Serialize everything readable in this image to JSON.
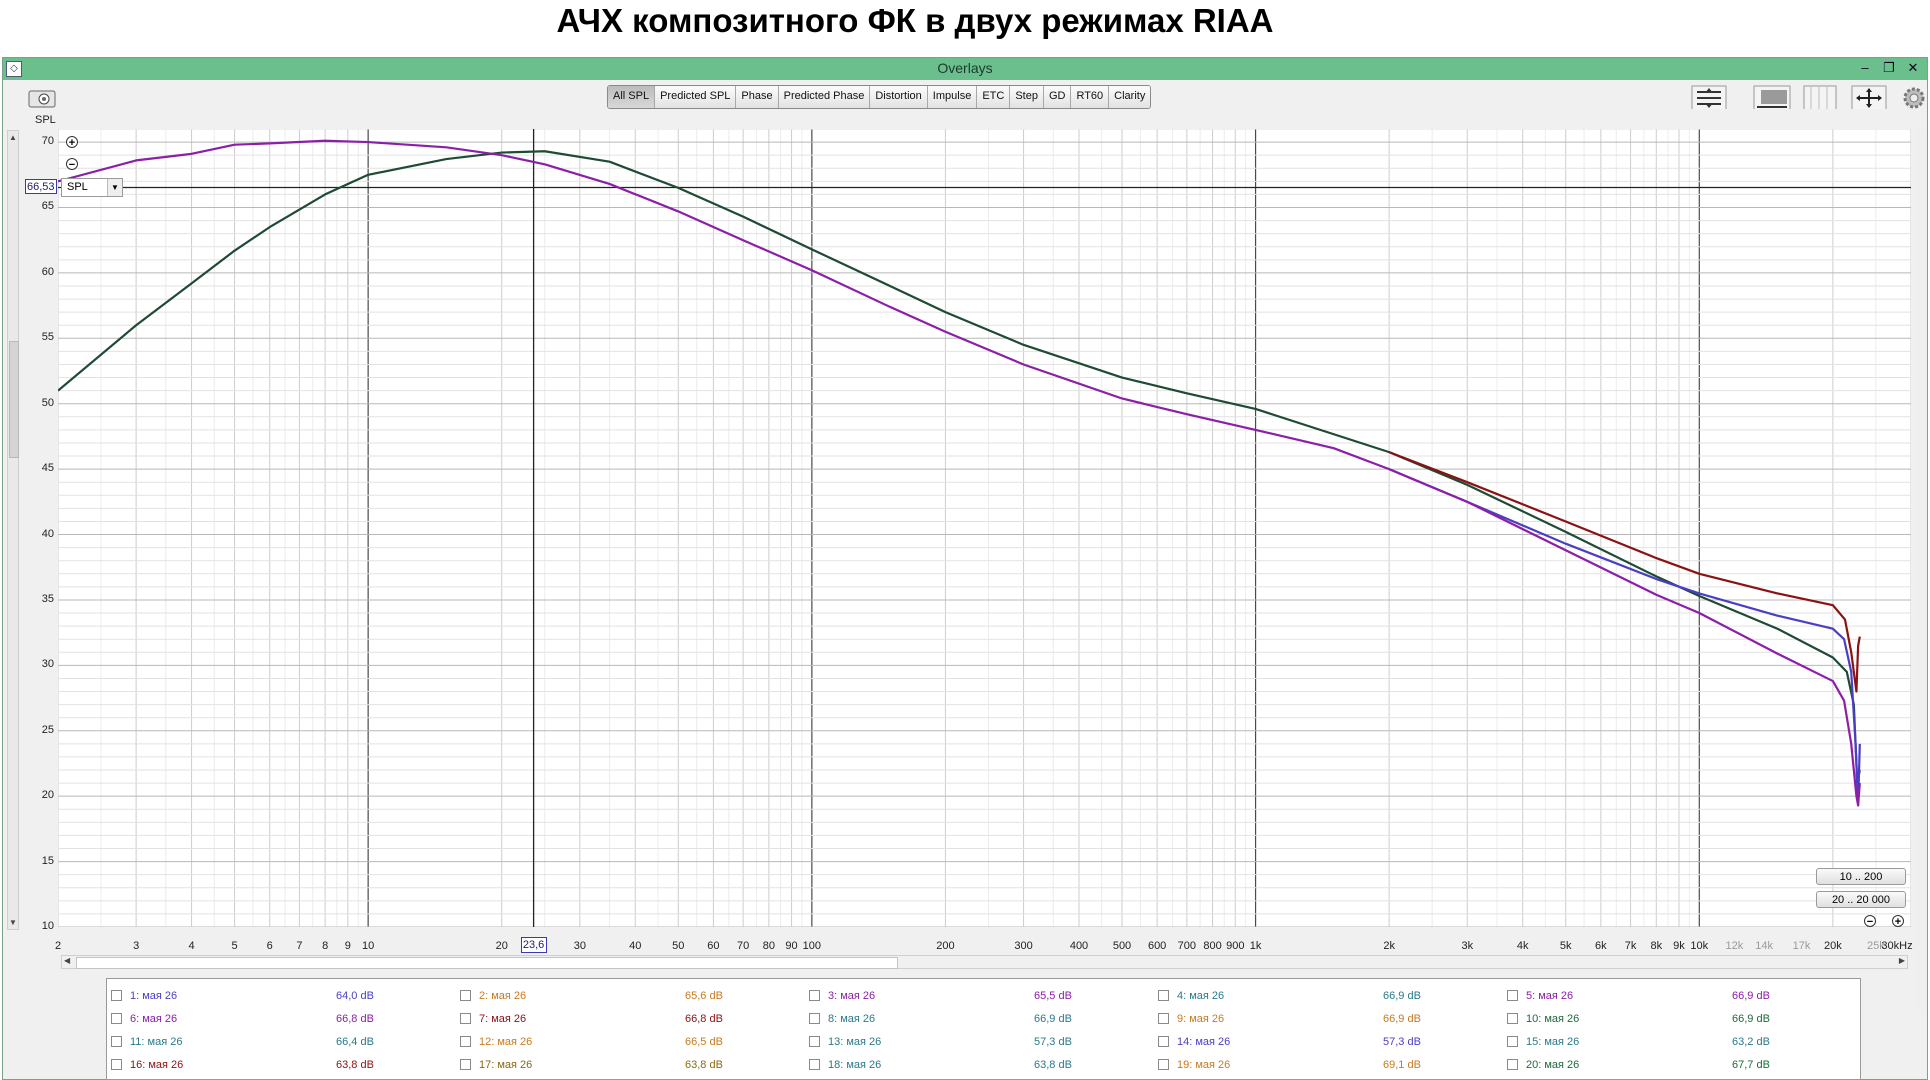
{
  "page_title": "АЧХ композитного ФК в двух режимах RIAA",
  "window": {
    "title": "Overlays",
    "controls": {
      "minimize": "–",
      "restore": "❐",
      "close": "✕"
    }
  },
  "toolbar": {
    "tabs": [
      "All SPL",
      "Predicted SPL",
      "Phase",
      "Predicted Phase",
      "Distortion",
      "Impulse",
      "ETC",
      "Step",
      "GD",
      "RT60",
      "Clarity"
    ],
    "active_tab": "All SPL"
  },
  "left_axis_label": "SPL",
  "cursor": {
    "y_value": "66,53",
    "x_value": "23,6",
    "selector": "SPL"
  },
  "zoom": {
    "in": "+",
    "out": "−"
  },
  "range_buttons": [
    "10 .. 200",
    "20 .. 20 000"
  ],
  "colors": {
    "purple": "#8b1fa8",
    "green": "#1f4a34",
    "red": "#8a1212",
    "blue": "#4a3fc4",
    "grid_major": "#4a4a4a",
    "grid_minor": "#cdcdcd"
  },
  "chart_data": {
    "type": "line",
    "xlabel": "",
    "ylabel": "SPL",
    "x_scale": "log",
    "xlim": [
      2,
      30000
    ],
    "ylim": [
      10,
      71
    ],
    "yticks": [
      10,
      15,
      20,
      25,
      30,
      35,
      40,
      45,
      50,
      55,
      60,
      65,
      70
    ],
    "xtick_labels": [
      {
        "f": 2,
        "label": "2"
      },
      {
        "f": 3,
        "label": "3"
      },
      {
        "f": 4,
        "label": "4"
      },
      {
        "f": 5,
        "label": "5"
      },
      {
        "f": 6,
        "label": "6"
      },
      {
        "f": 7,
        "label": "7"
      },
      {
        "f": 8,
        "label": "8"
      },
      {
        "f": 9,
        "label": "9"
      },
      {
        "f": 10,
        "label": "10"
      },
      {
        "f": 20,
        "label": "20"
      },
      {
        "f": 30,
        "label": "30"
      },
      {
        "f": 40,
        "label": "40"
      },
      {
        "f": 50,
        "label": "50"
      },
      {
        "f": 60,
        "label": "60"
      },
      {
        "f": 70,
        "label": "70"
      },
      {
        "f": 80,
        "label": "80"
      },
      {
        "f": 90,
        "label": "90"
      },
      {
        "f": 100,
        "label": "100"
      },
      {
        "f": 200,
        "label": "200"
      },
      {
        "f": 300,
        "label": "300"
      },
      {
        "f": 400,
        "label": "400"
      },
      {
        "f": 500,
        "label": "500"
      },
      {
        "f": 600,
        "label": "600"
      },
      {
        "f": 700,
        "label": "700"
      },
      {
        "f": 800,
        "label": "800"
      },
      {
        "f": 900,
        "label": "900"
      },
      {
        "f": 1000,
        "label": "1k"
      },
      {
        "f": 2000,
        "label": "2k"
      },
      {
        "f": 3000,
        "label": "3k"
      },
      {
        "f": 4000,
        "label": "4k"
      },
      {
        "f": 5000,
        "label": "5k"
      },
      {
        "f": 6000,
        "label": "6k"
      },
      {
        "f": 7000,
        "label": "7k"
      },
      {
        "f": 8000,
        "label": "8k"
      },
      {
        "f": 9000,
        "label": "9k"
      },
      {
        "f": 10000,
        "label": "10k"
      },
      {
        "f": 12000,
        "label": "12k",
        "minor": true
      },
      {
        "f": 14000,
        "label": "14k",
        "minor": true
      },
      {
        "f": 17000,
        "label": "17k",
        "minor": true
      },
      {
        "f": 20000,
        "label": "20k"
      },
      {
        "f": 25000,
        "label": "25k",
        "minor": true
      },
      {
        "f": 30000,
        "label": "30kHz"
      }
    ],
    "cursor_lines": {
      "x": 23.6,
      "y": 66.53
    },
    "series": [
      {
        "color": "#1f4a34",
        "points": [
          [
            2,
            51
          ],
          [
            3,
            56
          ],
          [
            4,
            59.2
          ],
          [
            5,
            61.7
          ],
          [
            6,
            63.5
          ],
          [
            8,
            66
          ],
          [
            10,
            67.5
          ],
          [
            15,
            68.7
          ],
          [
            20,
            69.2
          ],
          [
            25,
            69.3
          ],
          [
            35,
            68.5
          ],
          [
            50,
            66.5
          ],
          [
            70,
            64.3
          ],
          [
            100,
            61.8
          ],
          [
            150,
            59
          ],
          [
            200,
            57
          ],
          [
            300,
            54.5
          ],
          [
            500,
            52
          ],
          [
            700,
            50.8
          ],
          [
            1000,
            49.6
          ],
          [
            2000,
            46.3
          ],
          [
            3000,
            43.8
          ],
          [
            5000,
            40.2
          ],
          [
            8000,
            36.8
          ],
          [
            10000,
            35.3
          ],
          [
            15000,
            32.8
          ],
          [
            20000,
            30.6
          ],
          [
            21500,
            29.5
          ],
          [
            22300,
            27
          ],
          [
            22700,
            21
          ],
          [
            23000,
            22
          ]
        ]
      },
      {
        "color": "#8a1212",
        "points": [
          [
            2000,
            46.3
          ],
          [
            3000,
            44
          ],
          [
            5000,
            41
          ],
          [
            8000,
            38.2
          ],
          [
            10000,
            37
          ],
          [
            15000,
            35.5
          ],
          [
            20000,
            34.6
          ],
          [
            21300,
            33.5
          ],
          [
            22000,
            31
          ],
          [
            22600,
            28
          ],
          [
            22800,
            31.5
          ],
          [
            23000,
            32.2
          ]
        ]
      },
      {
        "color": "#4a3fc4",
        "points": [
          [
            2000,
            45
          ],
          [
            3000,
            42.5
          ],
          [
            5000,
            39.3
          ],
          [
            8000,
            36.6
          ],
          [
            10000,
            35.5
          ],
          [
            15000,
            33.8
          ],
          [
            20000,
            32.8
          ],
          [
            21200,
            32
          ],
          [
            22000,
            29.5
          ],
          [
            22500,
            24
          ],
          [
            22800,
            19.3
          ],
          [
            23000,
            24
          ]
        ]
      },
      {
        "color": "#8b1fa8",
        "points": [
          [
            2,
            67
          ],
          [
            3,
            68.6
          ],
          [
            4,
            69.1
          ],
          [
            5,
            69.8
          ],
          [
            6,
            69.9
          ],
          [
            8,
            70.1
          ],
          [
            10,
            70
          ],
          [
            15,
            69.6
          ],
          [
            20,
            69
          ],
          [
            25,
            68.3
          ],
          [
            35,
            66.8
          ],
          [
            50,
            64.7
          ],
          [
            70,
            62.5
          ],
          [
            100,
            60.2
          ],
          [
            150,
            57.4
          ],
          [
            200,
            55.5
          ],
          [
            300,
            53
          ],
          [
            500,
            50.4
          ],
          [
            700,
            49.2
          ],
          [
            1000,
            48
          ],
          [
            1500,
            46.6
          ],
          [
            2000,
            45
          ],
          [
            3000,
            42.5
          ],
          [
            5000,
            38.8
          ],
          [
            8000,
            35.4
          ],
          [
            10000,
            34
          ],
          [
            15000,
            30.9
          ],
          [
            20000,
            28.8
          ],
          [
            21200,
            27.3
          ],
          [
            22000,
            24
          ],
          [
            22600,
            20
          ],
          [
            22800,
            19.3
          ],
          [
            23000,
            21
          ]
        ]
      }
    ]
  },
  "legend": {
    "items": [
      {
        "name": "1: мая 26",
        "value": "64,0 dB",
        "color": "#4a3fc4",
        "checked": false
      },
      {
        "name": "2: мая 26",
        "value": "65,6 dB",
        "color": "#c87a20",
        "checked": false
      },
      {
        "name": "3: мая 26",
        "value": "65,5 dB",
        "color": "#8b1fa8",
        "checked": false
      },
      {
        "name": "4: мая 26",
        "value": "66,9 dB",
        "color": "#2a7a8a",
        "checked": false
      },
      {
        "name": "5: мая 26",
        "value": "66,9 dB",
        "color": "#8b1fa8",
        "checked": false
      },
      {
        "name": "6: мая 26",
        "value": "66,8 dB",
        "color": "#8b1fa8",
        "checked": false
      },
      {
        "name": "7: мая 26",
        "value": "66,8 dB",
        "color": "#8a1212",
        "checked": false
      },
      {
        "name": "8: мая 26",
        "value": "66,9 dB",
        "color": "#2a7a8a",
        "checked": false
      },
      {
        "name": "9: мая 26",
        "value": "66,9 dB",
        "color": "#c87a20",
        "checked": false
      },
      {
        "name": "10: мая 26",
        "value": "66,9 dB",
        "color": "#1f6a3a",
        "checked": false
      },
      {
        "name": "11: мая 26",
        "value": "66,4 dB",
        "color": "#2a7a8a",
        "checked": false
      },
      {
        "name": "12: мая 26",
        "value": "66,5 dB",
        "color": "#c87a20",
        "checked": false
      },
      {
        "name": "13: мая 26",
        "value": "57,3 dB",
        "color": "#2a7a8a",
        "checked": false
      },
      {
        "name": "14: мая 26",
        "value": "57,3 dB",
        "color": "#4a3fc4",
        "checked": false
      },
      {
        "name": "15: мая 26",
        "value": "63,2 dB",
        "color": "#2a7a8a",
        "checked": false
      },
      {
        "name": "16: мая 26",
        "value": "63,8 dB",
        "color": "#8a1212",
        "checked": false
      },
      {
        "name": "17: мая 26",
        "value": "63,8 dB",
        "color": "#8a6a10",
        "checked": false
      },
      {
        "name": "18: мая 26",
        "value": "63,8 dB",
        "color": "#2a7a8a",
        "checked": false
      },
      {
        "name": "19: мая 26",
        "value": "69,1 dB",
        "color": "#c87a20",
        "checked": false
      },
      {
        "name": "20: мая 26",
        "value": "67,7 dB",
        "color": "#1f6a3a",
        "checked": false
      }
    ]
  }
}
